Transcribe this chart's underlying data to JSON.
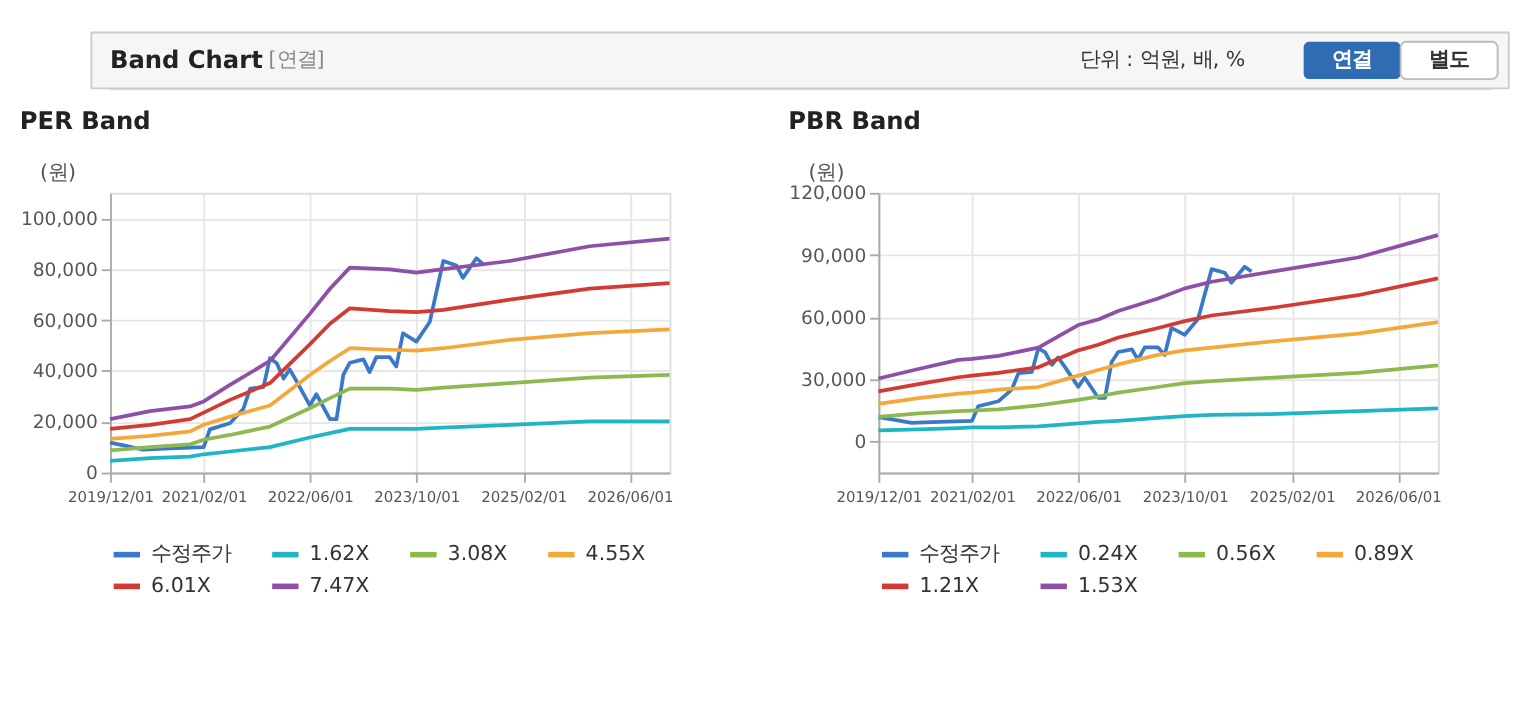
{
  "chart_data": [
    {
      "type": "line",
      "title": "PER Band",
      "ylabel": "(원)",
      "annotations": [
        "Band Chart",
        "[연결]",
        "단위 : 억원, 배, %",
        "연결",
        "별도"
      ],
      "xlim": [
        "2019-12",
        "2026-12"
      ],
      "xticks": [
        {
          "value": "2019-12",
          "label": "2019/12/01"
        },
        {
          "value": "2021-02",
          "label": "2021/02/01"
        },
        {
          "value": "2022-06",
          "label": "2022/06/01"
        },
        {
          "value": "2023-10",
          "label": "2023/10/01"
        },
        {
          "value": "2025-02",
          "label": "2025/02/01"
        },
        {
          "value": "2026-06",
          "label": "2026/06/01"
        }
      ],
      "ylim": [
        0,
        110000
      ],
      "yticks": [
        {
          "value": 0,
          "label": "0"
        },
        {
          "value": 20000,
          "label": "20,000"
        },
        {
          "value": 40000,
          "label": "40,000"
        },
        {
          "value": 60000,
          "label": "60,000"
        },
        {
          "value": 80000,
          "label": "80,000"
        },
        {
          "value": 100000,
          "label": "100,000"
        }
      ],
      "grid": true,
      "legend": "bottom",
      "marker": "none",
      "line_style": "solid",
      "x": [
        "2019-12",
        "2020-06",
        "2020-12",
        "2021-02",
        "2021-06",
        "2021-12",
        "2022-06",
        "2022-09",
        "2022-12",
        "2023-06",
        "2023-10",
        "2024-02",
        "2024-12",
        "2025-12",
        "2026-12"
      ],
      "series": [
        {
          "name": "수정주가",
          "color": "#3a78c9",
          "x": [
            "2019-12",
            "2020-02",
            "2020-05",
            "2020-08",
            "2021-02",
            "2021-03",
            "2021-06",
            "2021-08",
            "2021-09",
            "2021-11",
            "2021-12",
            "2022-01",
            "2022-02",
            "2022-03",
            "2022-04",
            "2022-06",
            "2022-07",
            "2022-09",
            "2022-10",
            "2022-11",
            "2022-12",
            "2023-02",
            "2023-03",
            "2023-04",
            "2023-06",
            "2023-07",
            "2023-08",
            "2023-10",
            "2023-12",
            "2024-02",
            "2024-04",
            "2024-05",
            "2024-07",
            "2024-08"
          ],
          "values": [
            11800,
            10700,
            9000,
            9400,
            10000,
            17000,
            19400,
            25000,
            33000,
            33600,
            45000,
            43000,
            37000,
            40600,
            36000,
            26400,
            30800,
            21000,
            21000,
            38400,
            43200,
            44500,
            39500,
            45400,
            45400,
            41700,
            54800,
            51500,
            59200,
            83200,
            81400,
            76600,
            84300,
            82000
          ]
        },
        {
          "name": "1.62X",
          "color": "#1fb5c4",
          "values": [
            4600,
            5700,
            6300,
            7200,
            8300,
            10000,
            13800,
            15500,
            17200,
            17200,
            17200,
            17700,
            18800,
            20100,
            20100
          ]
        },
        {
          "name": "3.08X",
          "color": "#8db94f",
          "values": [
            8700,
            10000,
            11100,
            12900,
            14800,
            18100,
            25300,
            29300,
            33000,
            33000,
            32500,
            33400,
            35200,
            37300,
            38400
          ]
        },
        {
          "name": "4.55X",
          "color": "#f5a83a",
          "values": [
            13300,
            14400,
            16200,
            18800,
            22000,
            26400,
            38400,
            43900,
            48900,
            48300,
            48000,
            48900,
            52200,
            54800,
            56300
          ]
        },
        {
          "name": "6.01X",
          "color": "#d23b33",
          "values": [
            17200,
            18800,
            21000,
            23600,
            28600,
            35200,
            50400,
            58500,
            64600,
            63500,
            63100,
            64000,
            68000,
            72300,
            74500
          ]
        },
        {
          "name": "7.47X",
          "color": "#8e4fa6",
          "values": [
            21000,
            24200,
            26000,
            28000,
            34500,
            43900,
            62400,
            72300,
            80600,
            79900,
            78600,
            80000,
            83200,
            89000,
            92000
          ]
        }
      ]
    },
    {
      "type": "line",
      "title": "PBR Band",
      "ylabel": "(원)",
      "xlim": [
        "2019-12",
        "2026-12"
      ],
      "xticks": [
        {
          "value": "2019-12",
          "label": "2019/12/01"
        },
        {
          "value": "2021-02",
          "label": "2021/02/01"
        },
        {
          "value": "2022-06",
          "label": "2022/06/01"
        },
        {
          "value": "2023-10",
          "label": "2023/10/01"
        },
        {
          "value": "2025-02",
          "label": "2025/02/01"
        },
        {
          "value": "2026-06",
          "label": "2026/06/01"
        }
      ],
      "ylim": [
        -15000,
        120000
      ],
      "yticks": [
        {
          "value": 0,
          "label": "0"
        },
        {
          "value": 30000,
          "label": "30,000"
        },
        {
          "value": 60000,
          "label": "60,000"
        },
        {
          "value": 90000,
          "label": "90,000"
        },
        {
          "value": 120000,
          "label": "120,000"
        }
      ],
      "grid": true,
      "legend": "bottom",
      "marker": "none",
      "line_style": "solid",
      "x": [
        "2019-12",
        "2020-06",
        "2020-12",
        "2021-02",
        "2021-06",
        "2021-12",
        "2022-06",
        "2022-09",
        "2022-12",
        "2023-06",
        "2023-10",
        "2024-02",
        "2024-12",
        "2025-12",
        "2026-12"
      ],
      "series": [
        {
          "name": "수정주가",
          "color": "#3a78c9",
          "x": [
            "2019-12",
            "2020-02",
            "2020-05",
            "2020-08",
            "2021-02",
            "2021-03",
            "2021-06",
            "2021-08",
            "2021-09",
            "2021-11",
            "2021-12",
            "2022-01",
            "2022-02",
            "2022-03",
            "2022-04",
            "2022-06",
            "2022-07",
            "2022-09",
            "2022-10",
            "2022-11",
            "2022-12",
            "2023-02",
            "2023-03",
            "2023-04",
            "2023-06",
            "2023-07",
            "2023-08",
            "2023-10",
            "2023-12",
            "2024-02",
            "2024-04",
            "2024-05",
            "2024-07",
            "2024-08"
          ],
          "values": [
            11800,
            10700,
            9000,
            9400,
            10000,
            17000,
            19400,
            25000,
            33000,
            33600,
            45000,
            43000,
            37000,
            40600,
            36000,
            26400,
            30800,
            21000,
            21000,
            38400,
            43200,
            44500,
            39500,
            45400,
            45400,
            41700,
            54800,
            51500,
            59200,
            83200,
            81400,
            76600,
            84300,
            82000
          ]
        },
        {
          "name": "0.24X",
          "color": "#1fb5c4",
          "values": [
            5400,
            5900,
            6500,
            6800,
            6800,
            7300,
            8700,
            9500,
            10000,
            11400,
            12200,
            12800,
            13300,
            14700,
            16000
          ]
        },
        {
          "name": "0.56X",
          "color": "#8db94f",
          "values": [
            11900,
            13600,
            14700,
            14900,
            15500,
            17400,
            20100,
            21700,
            23600,
            26300,
            28200,
            29100,
            31000,
            33100,
            36700
          ]
        },
        {
          "name": "0.89X",
          "color": "#f5a83a",
          "values": [
            18200,
            20900,
            23100,
            23600,
            25000,
            26300,
            31800,
            34500,
            37200,
            41800,
            44000,
            45300,
            48600,
            52100,
            57600
          ]
        },
        {
          "name": "1.21X",
          "color": "#d23b33",
          "values": [
            24200,
            27700,
            31000,
            31800,
            33100,
            35800,
            44000,
            46700,
            50200,
            54800,
            58100,
            60800,
            64900,
            70600,
            78700
          ]
        },
        {
          "name": "1.53X",
          "color": "#8e4fa6",
          "values": [
            30400,
            35000,
            39400,
            39900,
            41300,
            45300,
            56200,
            58900,
            63000,
            69000,
            73900,
            77100,
            82500,
            88800,
            99600
          ]
        }
      ]
    }
  ]
}
